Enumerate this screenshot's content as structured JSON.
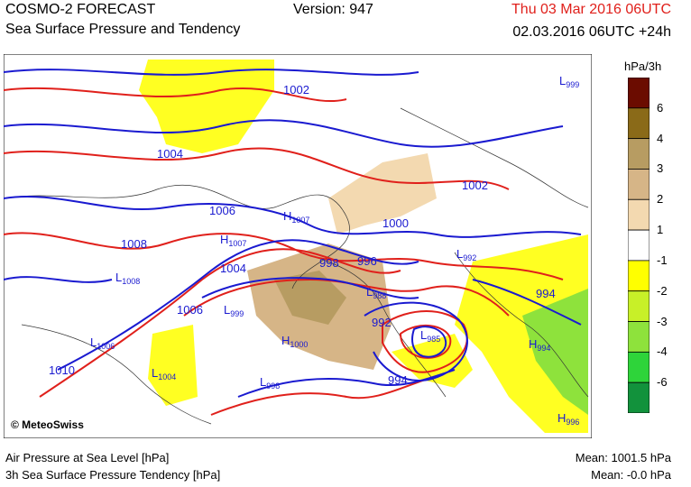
{
  "header": {
    "title": "COSMO-2 FORECAST",
    "subtitle": "Sea Surface Pressure and Tendency",
    "version": "Version: 947",
    "datetime": "Thu 03 Mar 2016 06UTC",
    "validity": "02.03.2016 06UTC +24h"
  },
  "colorbar": {
    "unit": "hPa/3h",
    "labels": [
      "6",
      "4",
      "3",
      "2",
      "1",
      "-1",
      "-2",
      "-3",
      "-4",
      "-6"
    ],
    "colors": [
      "#6b0c00",
      "#8a6a18",
      "#b79c62",
      "#d6b587",
      "#f3d9b0",
      "#ffffff",
      "#ffff00",
      "#c8f028",
      "#8ee23c",
      "#2ed43a",
      "#12923c"
    ]
  },
  "map": {
    "copyright": "© MeteoSwiss",
    "pressure_labels": [
      {
        "text": "1002"
      },
      {
        "text": "1004"
      },
      {
        "text": "1006"
      },
      {
        "text": "1008"
      },
      {
        "text": "1000"
      },
      {
        "text": "1002"
      },
      {
        "text": "998"
      },
      {
        "text": "996"
      },
      {
        "text": "1004"
      },
      {
        "text": "1006"
      },
      {
        "text": "992"
      },
      {
        "text": "994"
      },
      {
        "text": "994"
      },
      {
        "text": "1010"
      }
    ],
    "centers": [
      {
        "letter": "L",
        "value": "999"
      },
      {
        "letter": "H",
        "value": "1007"
      },
      {
        "letter": "H",
        "value": "1007"
      },
      {
        "letter": "L",
        "value": "1008"
      },
      {
        "letter": "L",
        "value": "992"
      },
      {
        "letter": "L",
        "value": "988"
      },
      {
        "letter": "L",
        "value": "999"
      },
      {
        "letter": "L",
        "value": "985"
      },
      {
        "letter": "H",
        "value": "1000"
      },
      {
        "letter": "L",
        "value": "1006"
      },
      {
        "letter": "L",
        "value": "1004"
      },
      {
        "letter": "L",
        "value": "998"
      },
      {
        "letter": "H",
        "value": "994"
      },
      {
        "letter": "H",
        "value": "996"
      }
    ]
  },
  "footer": {
    "legend_pressure": "Air Pressure at Sea Level [hPa]",
    "legend_tendency": "3h Sea Surface Pressure Tendency [hPa]",
    "mean_pressure": "Mean: 1001.5 hPa",
    "mean_tendency": "Mean:  -0.0 hPa"
  }
}
